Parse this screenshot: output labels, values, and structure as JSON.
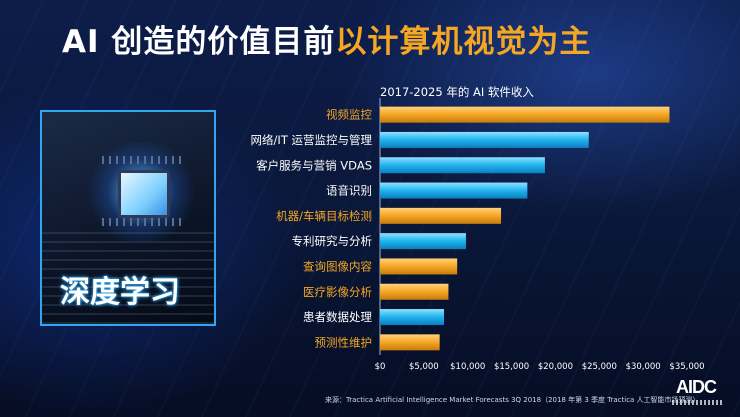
{
  "title": {
    "part_white": "AI 创造的价值目前",
    "part_orange": "以计算机视觉为主"
  },
  "image_label": "深度学习",
  "source": "来源：Tractica Artificial Intelligence Market Forecasts 3Q 2018（2018 年第 3 季度 Tractica 人工智能市场预测）",
  "logo_text": "AIDC",
  "colors": {
    "orange": "#f5a623",
    "blue": "#1fb3ee",
    "label_orange": "#f5a623",
    "label_white": "#ffffff"
  },
  "chart_data": {
    "type": "bar",
    "orientation": "horizontal",
    "title": "2017-2025 年的 AI 软件收入",
    "categories": [
      "视频监控",
      "网络/IT 运营监控与管理",
      "客户服务与营销 VDAS",
      "语音识别",
      "机器/车辆目标检测",
      "专利研究与分析",
      "查询图像内容",
      "医疗影像分析",
      "患者数据处理",
      "预测性维护"
    ],
    "values": [
      33000,
      23800,
      18800,
      16800,
      13800,
      9800,
      8800,
      7800,
      7300,
      6800
    ],
    "bar_colors": [
      "orange",
      "blue",
      "blue",
      "blue",
      "orange",
      "blue",
      "orange",
      "orange",
      "blue",
      "orange"
    ],
    "label_colors": [
      "orange",
      "white",
      "white",
      "white",
      "orange",
      "white",
      "orange",
      "orange",
      "white",
      "orange"
    ],
    "xlim": [
      0,
      35000
    ],
    "xticks": [
      0,
      5000,
      10000,
      15000,
      20000,
      25000,
      30000,
      35000
    ],
    "xtick_labels": [
      "$0",
      "$5,000",
      "$10,000",
      "$15,000",
      "$20,000",
      "$25,000",
      "$30,000",
      "$35,000"
    ],
    "grid": false,
    "legend": "none"
  }
}
